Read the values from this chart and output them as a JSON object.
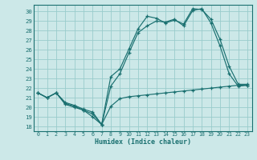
{
  "xlabel": "Humidex (Indice chaleur)",
  "bg_color": "#cce8e8",
  "grid_color": "#99cccc",
  "line_color": "#1a7070",
  "xlim": [
    -0.5,
    23.5
  ],
  "ylim": [
    17.5,
    30.7
  ],
  "yticks": [
    18,
    19,
    20,
    21,
    22,
    23,
    24,
    25,
    26,
    27,
    28,
    29,
    30
  ],
  "xticks": [
    0,
    1,
    2,
    3,
    4,
    5,
    6,
    7,
    8,
    9,
    10,
    11,
    12,
    13,
    14,
    15,
    16,
    17,
    18,
    19,
    20,
    21,
    22,
    23
  ],
  "series": [
    {
      "x": [
        0,
        1,
        2,
        3,
        4,
        5,
        6,
        7,
        8,
        9,
        10,
        11,
        12,
        13,
        14,
        15,
        16,
        17,
        18,
        19,
        20,
        21,
        22,
        23
      ],
      "y": [
        21.5,
        21.0,
        21.5,
        20.3,
        20.0,
        19.7,
        19.0,
        18.2,
        20.1,
        20.9,
        21.1,
        21.2,
        21.3,
        21.4,
        21.5,
        21.6,
        21.7,
        21.8,
        21.9,
        22.0,
        22.1,
        22.2,
        22.3,
        22.3
      ]
    },
    {
      "x": [
        0,
        1,
        2,
        3,
        4,
        5,
        6,
        7,
        8,
        9,
        10,
        11,
        12,
        13,
        14,
        15,
        16,
        17,
        18,
        19,
        20,
        21,
        22,
        23
      ],
      "y": [
        21.5,
        21.0,
        21.5,
        20.5,
        20.2,
        19.8,
        19.5,
        18.2,
        23.2,
        24.0,
        26.1,
        28.2,
        29.5,
        29.3,
        28.8,
        29.1,
        28.7,
        30.3,
        30.2,
        29.2,
        27.1,
        24.3,
        22.4,
        22.4
      ]
    },
    {
      "x": [
        0,
        1,
        2,
        3,
        4,
        5,
        6,
        7,
        8,
        9,
        10,
        11,
        12,
        13,
        14,
        15,
        16,
        17,
        18,
        19,
        20,
        21,
        22,
        23
      ],
      "y": [
        21.5,
        21.0,
        21.5,
        20.4,
        20.1,
        19.7,
        19.3,
        18.2,
        22.2,
        23.5,
        25.7,
        27.8,
        28.5,
        29.0,
        28.9,
        29.2,
        28.5,
        30.1,
        30.3,
        28.8,
        26.4,
        23.5,
        22.2,
        22.3
      ]
    }
  ]
}
